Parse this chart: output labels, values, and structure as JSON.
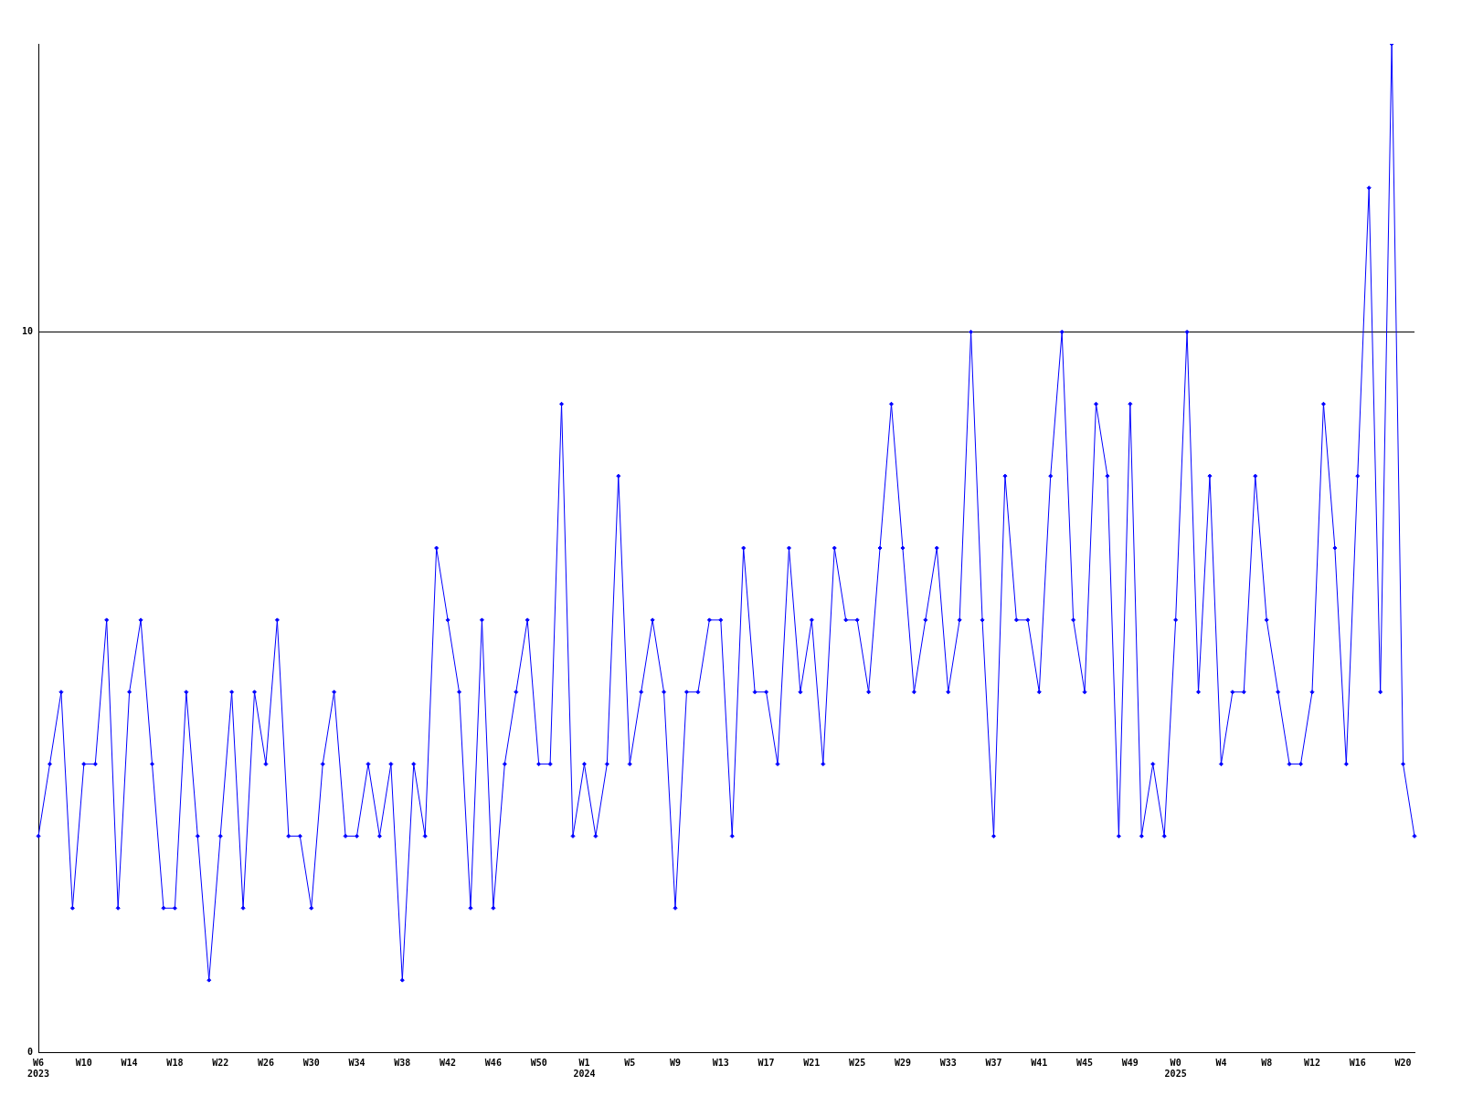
{
  "chart_data": {
    "type": "line",
    "categories": [
      "W6\n2023",
      null,
      null,
      null,
      "W10",
      null,
      null,
      null,
      "W14",
      null,
      null,
      null,
      "W18",
      null,
      null,
      null,
      "W22",
      null,
      null,
      null,
      "W26",
      null,
      null,
      null,
      "W30",
      null,
      null,
      null,
      "W34",
      null,
      null,
      null,
      "W38",
      null,
      null,
      null,
      "W42",
      null,
      null,
      null,
      "W46",
      null,
      null,
      null,
      "W50",
      null,
      null,
      null,
      "W1\n2024",
      null,
      null,
      null,
      "W5",
      null,
      null,
      null,
      "W9",
      null,
      null,
      null,
      "W13",
      null,
      null,
      null,
      "W17",
      null,
      null,
      null,
      "W21",
      null,
      null,
      null,
      "W25",
      null,
      null,
      null,
      "W29",
      null,
      null,
      null,
      "W33",
      null,
      null,
      null,
      "W37",
      null,
      null,
      null,
      "W41",
      null,
      null,
      null,
      "W45",
      null,
      null,
      null,
      "W49",
      null,
      null,
      null,
      "W0\n2025",
      null,
      null,
      null,
      "W4",
      null,
      null,
      null,
      "W8",
      null,
      null,
      null,
      "W12",
      null,
      null,
      null,
      "W16",
      null,
      null,
      null,
      "W20",
      null
    ],
    "series": [
      {
        "color": "#0000ff",
        "values": [
          3,
          4,
          5,
          2,
          4,
          4,
          6,
          2,
          5,
          6,
          4,
          2,
          2,
          5,
          3,
          1,
          3,
          5,
          2,
          5,
          4,
          6,
          3,
          3,
          2,
          4,
          5,
          3,
          3,
          4,
          3,
          4,
          1,
          4,
          3,
          7,
          6,
          5,
          2,
          6,
          2,
          4,
          5,
          6,
          4,
          4,
          9,
          3,
          4,
          3,
          4,
          8,
          4,
          5,
          6,
          5,
          2,
          5,
          5,
          6,
          6,
          3,
          7,
          5,
          5,
          4,
          7,
          5,
          6,
          4,
          7,
          6,
          6,
          5,
          7,
          9,
          7,
          5,
          6,
          7,
          5,
          6,
          10,
          6,
          3,
          8,
          6,
          6,
          5,
          8,
          10,
          6,
          5,
          9,
          8,
          3,
          9,
          3,
          4,
          3,
          6,
          10,
          5,
          8,
          4,
          5,
          5,
          8,
          6,
          5,
          4,
          4,
          5,
          9,
          7,
          4,
          8,
          12,
          5,
          14,
          4,
          3
        ]
      }
    ],
    "ylim": [
      0,
      14
    ],
    "yticks": [
      0,
      10
    ],
    "grid": "y",
    "marker": "diamond",
    "line_style": "solid",
    "legend": false
  }
}
